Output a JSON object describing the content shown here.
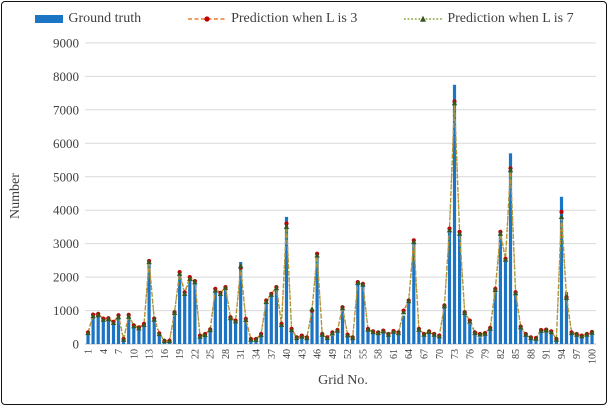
{
  "legend": {
    "items": [
      {
        "label": "Ground truth",
        "swatch": "bar-swatch",
        "color": "#1b74c4"
      },
      {
        "label": "Prediction when L is 3",
        "swatch": "dashed-line-circle-swatch",
        "line_color": "#ED7D31",
        "marker_color": "#C00000"
      },
      {
        "label": "Prediction when L is 7",
        "swatch": "dashed-line-triangle-swatch",
        "line_color": "#86A73C",
        "marker_color": "#375623"
      }
    ]
  },
  "axes": {
    "y_title": "Number",
    "x_title": "Grid No.",
    "y_ticks": [
      0,
      1000,
      2000,
      3000,
      4000,
      5000,
      6000,
      7000,
      8000,
      9000
    ],
    "x_tick_labels": [
      "1",
      "4",
      "7",
      "10",
      "13",
      "16",
      "19",
      "22",
      "25",
      "28",
      "31",
      "34",
      "37",
      "40",
      "43",
      "46",
      "49",
      "52",
      "55",
      "58",
      "61",
      "64",
      "67",
      "70",
      "73",
      "76",
      "79",
      "82",
      "85",
      "88",
      "91",
      "94",
      "97",
      "100"
    ]
  },
  "chart_data": {
    "type": "bar",
    "title": "",
    "xlabel": "Grid No.",
    "ylabel": "Number",
    "ylim": [
      0,
      9000
    ],
    "grid": true,
    "legend_position": "top",
    "x_range": [
      1,
      100
    ],
    "x_tick_labels": [
      "1",
      "4",
      "7",
      "10",
      "13",
      "16",
      "19",
      "22",
      "25",
      "28",
      "31",
      "34",
      "37",
      "40",
      "43",
      "46",
      "49",
      "52",
      "55",
      "58",
      "61",
      "64",
      "67",
      "70",
      "73",
      "76",
      "79",
      "82",
      "85",
      "88",
      "91",
      "94",
      "97",
      "100"
    ],
    "series": [
      {
        "name": "Ground truth",
        "type": "bar",
        "color": "#1b74c4",
        "values": [
          300,
          800,
          850,
          700,
          720,
          620,
          780,
          120,
          800,
          500,
          450,
          550,
          2450,
          700,
          280,
          80,
          70,
          900,
          2150,
          1500,
          1950,
          1850,
          200,
          250,
          400,
          1550,
          1480,
          1650,
          750,
          650,
          2450,
          700,
          120,
          100,
          250,
          1200,
          1450,
          1650,
          550,
          3800,
          400,
          150,
          200,
          150,
          950,
          2650,
          250,
          150,
          250,
          350,
          1050,
          250,
          150,
          1850,
          1800,
          400,
          350,
          300,
          380,
          250,
          350,
          300,
          850,
          1250,
          3150,
          400,
          250,
          300,
          250,
          200,
          1100,
          3400,
          7750,
          3350,
          1000,
          600,
          300,
          200,
          300,
          450,
          1600,
          3300,
          2500,
          5700,
          1500,
          500,
          250,
          150,
          150,
          350,
          400,
          350,
          120,
          4400,
          1550,
          300,
          250,
          200,
          250,
          300
        ]
      },
      {
        "name": "Prediction when L is 3",
        "type": "line",
        "line_color": "#ED7D31",
        "marker": "circle",
        "marker_color": "#C00000",
        "values": [
          350,
          880,
          900,
          760,
          770,
          660,
          860,
          150,
          870,
          560,
          500,
          600,
          2480,
          760,
          320,
          100,
          100,
          950,
          2150,
          1550,
          2000,
          1880,
          250,
          300,
          440,
          1650,
          1530,
          1700,
          800,
          700,
          2280,
          750,
          150,
          150,
          300,
          1300,
          1500,
          1700,
          600,
          3600,
          450,
          200,
          250,
          200,
          1000,
          2700,
          300,
          200,
          350,
          420,
          1100,
          280,
          200,
          1850,
          1800,
          450,
          380,
          350,
          400,
          300,
          390,
          350,
          1000,
          1300,
          3100,
          450,
          300,
          380,
          300,
          250,
          1150,
          3450,
          7250,
          3350,
          950,
          700,
          350,
          300,
          330,
          480,
          1650,
          3350,
          2550,
          5250,
          1550,
          520,
          300,
          200,
          180,
          420,
          430,
          380,
          150,
          3950,
          1400,
          350,
          300,
          250,
          300,
          360
        ]
      },
      {
        "name": "Prediction when L is 7",
        "type": "line",
        "line_color": "#86A73C",
        "marker": "triangle",
        "marker_color": "#375623",
        "values": [
          330,
          830,
          860,
          730,
          740,
          630,
          800,
          130,
          820,
          530,
          470,
          570,
          2450,
          730,
          300,
          90,
          90,
          930,
          2100,
          1500,
          1950,
          1850,
          220,
          270,
          420,
          1600,
          1500,
          1680,
          770,
          680,
          2330,
          720,
          130,
          130,
          270,
          1260,
          1470,
          1670,
          570,
          3500,
          420,
          180,
          220,
          180,
          1040,
          2650,
          280,
          180,
          320,
          400,
          1070,
          260,
          180,
          1830,
          1780,
          430,
          360,
          330,
          380,
          280,
          370,
          330,
          950,
          1280,
          3050,
          430,
          280,
          360,
          280,
          230,
          1130,
          3400,
          7200,
          3300,
          930,
          670,
          330,
          280,
          310,
          460,
          1620,
          3300,
          2520,
          5200,
          1520,
          500,
          280,
          180,
          160,
          400,
          410,
          360,
          130,
          3800,
          1380,
          330,
          280,
          230,
          280,
          340
        ]
      }
    ]
  }
}
